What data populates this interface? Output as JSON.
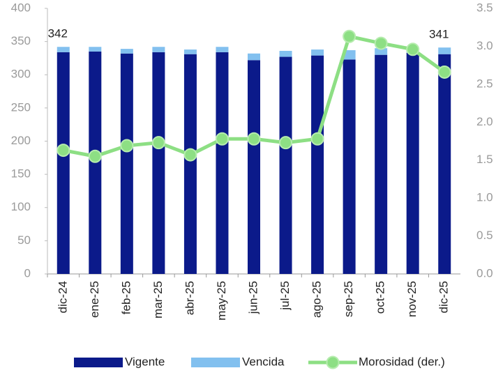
{
  "chart_data": {
    "type": "bar",
    "categories": [
      "dic-24",
      "ene-25",
      "feb-25",
      "mar-25",
      "abr-25",
      "may-25",
      "jun-25",
      "jul-25",
      "ago-25",
      "sep-25",
      "oct-25",
      "nov-25",
      "dic-25"
    ],
    "series": [
      {
        "name": "Vigente",
        "color": "#0b1a8a",
        "values": [
          334,
          335,
          332,
          334,
          331,
          334,
          322,
          327,
          329,
          323,
          330,
          333,
          331
        ]
      },
      {
        "name": "Vencida",
        "color": "#82c0ef",
        "values": [
          8,
          7,
          7,
          8,
          7,
          8,
          10,
          9,
          9,
          14,
          10,
          8,
          10
        ]
      },
      {
        "name": "Morosidad (der.)",
        "color": "#8ddf84",
        "axis": "y2",
        "type": "line",
        "values": [
          1.63,
          1.55,
          1.69,
          1.73,
          1.57,
          1.78,
          1.78,
          1.73,
          1.78,
          3.13,
          3.04,
          2.96,
          2.66
        ]
      }
    ],
    "annotations": [
      "342",
      "341"
    ],
    "ylim": [
      0,
      400
    ],
    "yticks": [
      0,
      50,
      100,
      150,
      200,
      250,
      300,
      350,
      400
    ],
    "y2lim": [
      0,
      3.5
    ],
    "y2ticks": [
      {
        "value": 0,
        "label": "0.0"
      },
      {
        "value": 0.5,
        "label": "0.5"
      },
      {
        "value": 1,
        "label": "1.0"
      },
      {
        "value": 1.5,
        "label": "1.5"
      },
      {
        "value": 2,
        "label": "2.0"
      },
      {
        "value": 2.5,
        "label": "2.5"
      },
      {
        "value": 3,
        "label": "3.0"
      },
      {
        "value": 3.5,
        "label": "3.5"
      }
    ]
  }
}
